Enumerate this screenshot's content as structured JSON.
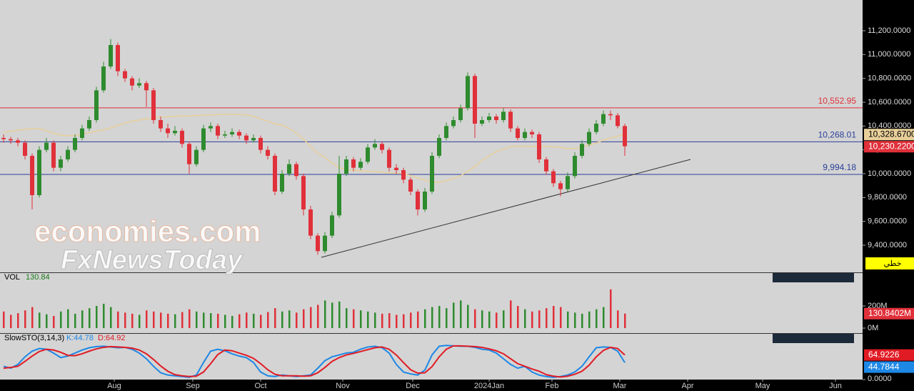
{
  "chart_data": {
    "type": "candlestick",
    "up_color": "#2e8b2e",
    "down_color": "#e0303a",
    "xlim": [
      -0.5,
      120.3
    ],
    "xticks": [
      {
        "value": 15.5,
        "label": "Aug"
      },
      {
        "value": 26.5,
        "label": "Sep"
      },
      {
        "value": 36,
        "label": "Oct"
      },
      {
        "value": 47.5,
        "label": "Nov"
      },
      {
        "value": 57.3,
        "label": "Dec"
      },
      {
        "value": 68,
        "label": "2024Jan"
      },
      {
        "value": 76.8,
        "label": "Feb"
      },
      {
        "value": 86.3,
        "label": "Mar"
      },
      {
        "value": 95.8,
        "label": "Apr"
      },
      {
        "value": 106.3,
        "label": "May"
      },
      {
        "value": 116.5,
        "label": "Jun"
      }
    ],
    "ylim": [
      9178,
      11458
    ],
    "yticks": [
      {
        "value": 9400,
        "label": "9,400.0000"
      },
      {
        "value": 9600,
        "label": "9,600.0000"
      },
      {
        "value": 9800,
        "label": "9,800.0000"
      },
      {
        "value": 10000,
        "label": "10,000.0000"
      },
      {
        "value": 10200,
        "label": "10,200.0000"
      },
      {
        "value": 10400,
        "label": "10,400.0000"
      },
      {
        "value": 10600,
        "label": "10,600.0000"
      },
      {
        "value": 10800,
        "label": "10,800.0000"
      },
      {
        "value": 11000,
        "label": "11,000.0000"
      },
      {
        "value": 11200,
        "label": "11,200.0000"
      }
    ],
    "candles": [
      [
        10300,
        10330,
        10260,
        10290
      ],
      [
        10290,
        10310,
        10250,
        10280
      ],
      [
        10280,
        10300,
        10230,
        10260
      ],
      [
        10260,
        10280,
        10120,
        10150
      ],
      [
        10150,
        10170,
        9700,
        9820
      ],
      [
        9820,
        10230,
        9800,
        10200
      ],
      [
        10200,
        10300,
        10180,
        10260
      ],
      [
        10260,
        10280,
        10020,
        10050
      ],
      [
        10050,
        10150,
        10020,
        10120
      ],
      [
        10120,
        10230,
        10100,
        10200
      ],
      [
        10200,
        10330,
        10180,
        10300
      ],
      [
        10300,
        10410,
        10280,
        10380
      ],
      [
        10380,
        10480,
        10360,
        10450
      ],
      [
        10450,
        10730,
        10430,
        10700
      ],
      [
        10700,
        10940,
        10680,
        10900
      ],
      [
        10900,
        11130,
        10880,
        11080
      ],
      [
        11080,
        11100,
        10820,
        10860
      ],
      [
        10860,
        10880,
        10770,
        10800
      ],
      [
        10800,
        10820,
        10700,
        10740
      ],
      [
        10740,
        10800,
        10720,
        10760
      ],
      [
        10760,
        10780,
        10560,
        10700
      ],
      [
        10700,
        10720,
        10420,
        10450
      ],
      [
        10450,
        10480,
        10350,
        10380
      ],
      [
        10380,
        10420,
        10300,
        10340
      ],
      [
        10340,
        10400,
        10320,
        10360
      ],
      [
        10360,
        10380,
        10220,
        10250
      ],
      [
        10250,
        10270,
        10000,
        10080
      ],
      [
        10080,
        10230,
        10060,
        10200
      ],
      [
        10200,
        10410,
        10180,
        10380
      ],
      [
        10380,
        10430,
        10350,
        10400
      ],
      [
        10400,
        10420,
        10290,
        10320
      ],
      [
        10320,
        10360,
        10300,
        10330
      ],
      [
        10330,
        10380,
        10310,
        10350
      ],
      [
        10350,
        10370,
        10290,
        10320
      ],
      [
        10320,
        10340,
        10250,
        10280
      ],
      [
        10280,
        10330,
        10260,
        10300
      ],
      [
        10300,
        10320,
        10170,
        10200
      ],
      [
        10200,
        10230,
        10120,
        10150
      ],
      [
        10150,
        10170,
        9820,
        9850
      ],
      [
        9850,
        10030,
        9830,
        10000
      ],
      [
        10000,
        10120,
        9980,
        10080
      ],
      [
        10080,
        10100,
        9950,
        9980
      ],
      [
        9980,
        10000,
        9650,
        9700
      ],
      [
        9700,
        9730,
        9450,
        9480
      ],
      [
        9480,
        9500,
        9320,
        9350
      ],
      [
        9350,
        9510,
        9330,
        9480
      ],
      [
        9480,
        9680,
        9460,
        9650
      ],
      [
        9650,
        10150,
        9630,
        10000
      ],
      [
        10000,
        10150,
        9980,
        10120
      ],
      [
        10120,
        10140,
        10020,
        10050
      ],
      [
        10050,
        10130,
        10030,
        10100
      ],
      [
        10100,
        10250,
        10080,
        10220
      ],
      [
        10220,
        10290,
        10200,
        10250
      ],
      [
        10250,
        10270,
        10170,
        10200
      ],
      [
        10200,
        10220,
        10020,
        10050
      ],
      [
        10050,
        10080,
        10000,
        10030
      ],
      [
        10030,
        10050,
        9920,
        9950
      ],
      [
        9950,
        9970,
        9820,
        9850
      ],
      [
        9850,
        9870,
        9650,
        9700
      ],
      [
        9700,
        9880,
        9680,
        9850
      ],
      [
        9850,
        10180,
        9830,
        10150
      ],
      [
        10150,
        10330,
        10130,
        10300
      ],
      [
        10300,
        10430,
        10280,
        10400
      ],
      [
        10400,
        10480,
        10380,
        10450
      ],
      [
        10450,
        10580,
        10430,
        10550
      ],
      [
        10550,
        10850,
        10530,
        10820
      ],
      [
        10820,
        10840,
        10300,
        10420
      ],
      [
        10420,
        10480,
        10400,
        10450
      ],
      [
        10450,
        10510,
        10430,
        10480
      ],
      [
        10480,
        10500,
        10420,
        10450
      ],
      [
        10450,
        10550,
        10430,
        10520
      ],
      [
        10520,
        10540,
        10350,
        10380
      ],
      [
        10380,
        10400,
        10280,
        10300
      ],
      [
        10300,
        10380,
        10280,
        10350
      ],
      [
        10350,
        10370,
        10300,
        10330
      ],
      [
        10330,
        10350,
        10090,
        10120
      ],
      [
        10120,
        10140,
        9990,
        10020
      ],
      [
        10020,
        10040,
        9890,
        9920
      ],
      [
        9920,
        9940,
        9810,
        9870
      ],
      [
        9870,
        10010,
        9850,
        9980
      ],
      [
        9980,
        10180,
        9960,
        10150
      ],
      [
        10150,
        10280,
        10130,
        10250
      ],
      [
        10250,
        10380,
        10230,
        10350
      ],
      [
        10350,
        10450,
        10330,
        10420
      ],
      [
        10420,
        10530,
        10400,
        10500
      ],
      [
        10500,
        10530,
        10450,
        10490
      ],
      [
        10490,
        10510,
        10380,
        10400
      ],
      [
        10400,
        10420,
        10150,
        10230.22
      ]
    ],
    "last_label": "10,230.2200",
    "ma": {
      "color": "#e8cf9a",
      "last_label": "10,328.6700",
      "values": [
        10348,
        10355,
        10365,
        10372,
        10378,
        10378,
        10360,
        10340,
        10325,
        10318,
        10320,
        10330,
        10345,
        10358,
        10366,
        10385,
        10405,
        10425,
        10440,
        10450,
        10460,
        10468,
        10474,
        10478,
        10482,
        10484,
        10486,
        10488,
        10490,
        10494,
        10496,
        10498,
        10498,
        10497,
        10494,
        10480,
        10460,
        10440,
        10420,
        10408,
        10380,
        10340,
        10290,
        10230,
        10170,
        10138,
        10090,
        10050,
        10036,
        10030,
        10025,
        10020,
        10018,
        10012,
        10008,
        10004,
        10000,
        9985,
        9965,
        9946,
        9932,
        9928,
        9940,
        9960,
        9985,
        10018,
        10060,
        10110,
        10150,
        10186,
        10205,
        10228,
        10232,
        10230,
        10228,
        10228,
        10228,
        10226,
        10222,
        10210,
        10212,
        10225,
        10240,
        10258,
        10280,
        10300,
        10315,
        10328.67
      ]
    },
    "hlines": [
      {
        "value": 10552.95,
        "label": "10,552.95",
        "color": "#e0303a"
      },
      {
        "value": 10268.01,
        "label": "10,268.01",
        "color": "#2a3f9a"
      },
      {
        "value": 9994.18,
        "label": "9,994.18",
        "color": "#2a3f9a"
      }
    ],
    "trendline": {
      "x": [
        44.5,
        96.2
      ],
      "y": [
        9298,
        10120
      ],
      "color": "#333333"
    },
    "watermark": [
      "economies.com",
      "FxNewsToday"
    ],
    "chart_style_button": "خطي",
    "volume": {
      "name": "VOL",
      "header_value": 130.84,
      "last_label": "130.8402M",
      "ylim": [
        -45,
        497
      ],
      "yticks": [
        {
          "value": 0,
          "label": "0M"
        },
        {
          "value": 200,
          "label": "200M"
        }
      ],
      "values": [
        150,
        120,
        135,
        160,
        190,
        140,
        125,
        110,
        150,
        170,
        130,
        160,
        180,
        200,
        220,
        190,
        150,
        140,
        130,
        120,
        160,
        150,
        140,
        130,
        125,
        145,
        170,
        150,
        140,
        135,
        130,
        120,
        110,
        125,
        140,
        130,
        120,
        145,
        180,
        150,
        160,
        140,
        170,
        190,
        210,
        250,
        230,
        240,
        180,
        170,
        160,
        150,
        140,
        130,
        135,
        120,
        125,
        140,
        150,
        170,
        190,
        200,
        180,
        230,
        250,
        210,
        170,
        160,
        150,
        140,
        160,
        250,
        200,
        170,
        150,
        160,
        180,
        200,
        190,
        150,
        140,
        130,
        150,
        170,
        190,
        350,
        160,
        130.8402
      ]
    },
    "stoch": {
      "name": "SlowSTO(3,14,3)",
      "k_header": "K:44.78",
      "d_header": "D:64.92",
      "ylim": [
        -7.5,
        120.75
      ],
      "yticks": [
        {
          "value": 0,
          "label": "0.0000"
        }
      ],
      "series": [
        {
          "name": "K",
          "color": "#1e88e5",
          "values": [
            35,
            30,
            40,
            60,
            75,
            82,
            80,
            70,
            58,
            62,
            70,
            78,
            84,
            87,
            88,
            86,
            84,
            85,
            80,
            70,
            55,
            35,
            18,
            12,
            10,
            8,
            6,
            12,
            45,
            75,
            80,
            76,
            68,
            62,
            58,
            45,
            20,
            10,
            8,
            12,
            10,
            8,
            10,
            12,
            30,
            50,
            60,
            65,
            70,
            72,
            80,
            86,
            88,
            84,
            70,
            40,
            20,
            15,
            12,
            25,
            65,
            88,
            90,
            89,
            88,
            88,
            85,
            80,
            78,
            70,
            55,
            40,
            30,
            35,
            20,
            12,
            8,
            6,
            8,
            12,
            20,
            35,
            60,
            84,
            86,
            85,
            75,
            44.7844
          ]
        },
        {
          "name": "D",
          "color": "#e01b24",
          "values": [
            30,
            32,
            35,
            48,
            62,
            74,
            80,
            78,
            72,
            64,
            63,
            68,
            75,
            81,
            85,
            87,
            86,
            85,
            83,
            78,
            68,
            53,
            36,
            22,
            13,
            10,
            8,
            9,
            20,
            42,
            66,
            78,
            76,
            70,
            64,
            56,
            42,
            26,
            14,
            10,
            10,
            10,
            9,
            10,
            18,
            32,
            48,
            58,
            65,
            69,
            74,
            79,
            84,
            86,
            80,
            65,
            45,
            26,
            17,
            18,
            34,
            60,
            80,
            89,
            89,
            88,
            87,
            85,
            81,
            76,
            68,
            55,
            42,
            35,
            28,
            22,
            13,
            9,
            7,
            9,
            14,
            22,
            38,
            60,
            77,
            85,
            82,
            64.9226
          ]
        }
      ]
    }
  }
}
